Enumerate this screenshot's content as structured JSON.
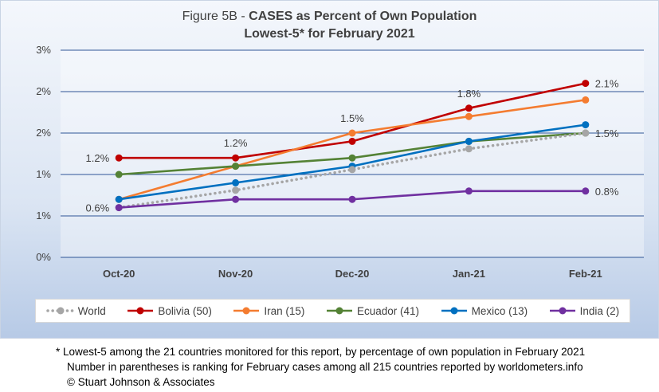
{
  "title_prefix": "Figure 5B - ",
  "title_bold": "CASES as Percent of Own Population",
  "subtitle": "Lowest-5* for February 2021",
  "footnotes": [
    "* Lowest-5 among the 21 countries monitored for this report, by percentage of own population in February 2021",
    "Number in parentheses is ranking for February cases among all 215 countries reported by worldometers.info",
    "© Stuart Johnson & Associates"
  ],
  "chart_data": {
    "type": "line",
    "title": "Figure 5B - CASES as Percent of Own Population",
    "subtitle": "Lowest-5* for February 2021",
    "categories": [
      "Oct-20",
      "Nov-20",
      "Dec-20",
      "Jan-21",
      "Feb-21"
    ],
    "ylim": [
      0,
      2.5
    ],
    "yticks": [
      0,
      0.5,
      1.0,
      1.5,
      2.0,
      2.5
    ],
    "ytick_labels": [
      "0%",
      "1%",
      "1%",
      "2%",
      "2%",
      "3%"
    ],
    "grid": true,
    "legend_position": "bottom",
    "series": [
      {
        "name": "World",
        "color": "#a6a6a6",
        "dashed": true,
        "values": [
          0.6,
          0.81,
          1.06,
          1.31,
          1.5
        ]
      },
      {
        "name": "Bolivia (50)",
        "color": "#c00000",
        "dashed": false,
        "values": [
          1.2,
          1.2,
          1.4,
          1.8,
          2.1
        ]
      },
      {
        "name": "Iran (15)",
        "color": "#f47c30",
        "dashed": false,
        "values": [
          0.7,
          1.1,
          1.5,
          1.7,
          1.9
        ]
      },
      {
        "name": "Ecuador (41)",
        "color": "#548235",
        "dashed": false,
        "values": [
          1.0,
          1.1,
          1.2,
          1.4,
          1.5
        ]
      },
      {
        "name": "Mexico (13)",
        "color": "#0070c0",
        "dashed": false,
        "values": [
          0.7,
          0.9,
          1.1,
          1.4,
          1.6
        ]
      },
      {
        "name": "India (2)",
        "color": "#7030a0",
        "dashed": false,
        "values": [
          0.6,
          0.7,
          0.7,
          0.8,
          0.8
        ]
      }
    ],
    "annotations": [
      {
        "label": "1.2%",
        "category": "Oct-20",
        "value": 1.2,
        "position": "left"
      },
      {
        "label": "0.6%",
        "category": "Oct-20",
        "value": 0.6,
        "position": "left"
      },
      {
        "label": "1.2%",
        "category": "Nov-20",
        "value": 1.2,
        "position": "above"
      },
      {
        "label": "1.5%",
        "category": "Dec-20",
        "value": 1.5,
        "position": "above"
      },
      {
        "label": "1.8%",
        "category": "Jan-21",
        "value": 1.8,
        "position": "above"
      },
      {
        "label": "2.1%",
        "category": "Feb-21",
        "value": 2.1,
        "position": "right"
      },
      {
        "label": "1.5%",
        "category": "Feb-21",
        "value": 1.5,
        "position": "right"
      },
      {
        "label": "0.8%",
        "category": "Feb-21",
        "value": 0.8,
        "position": "right"
      }
    ]
  }
}
